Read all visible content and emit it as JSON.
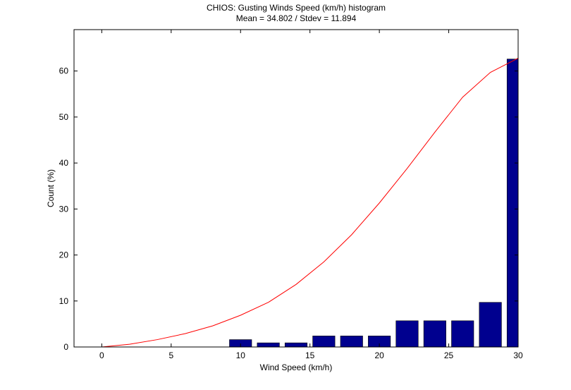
{
  "chart_data": {
    "type": "bar",
    "title": "CHIOS: Gusting Winds Speed (km/h) histogram",
    "subtitle": "Mean = 34.802 / Stdev = 11.894",
    "xlabel": "Wind Speed (km/h)",
    "ylabel": "Count (%)",
    "xlim": [
      -2,
      30
    ],
    "ylim": [
      0,
      69
    ],
    "xticks": [
      0,
      5,
      10,
      15,
      20,
      25,
      30
    ],
    "yticks": [
      0,
      10,
      20,
      30,
      40,
      50,
      60
    ],
    "bar_width": 1.6,
    "bar_color": "#00008f",
    "curve_color": "#ff0000",
    "grid": false,
    "bars": [
      {
        "x": 10,
        "value": 1.6
      },
      {
        "x": 12,
        "value": 0.9
      },
      {
        "x": 14,
        "value": 0.9
      },
      {
        "x": 16,
        "value": 2.4
      },
      {
        "x": 18,
        "value": 2.4
      },
      {
        "x": 20,
        "value": 2.4
      },
      {
        "x": 22,
        "value": 5.7
      },
      {
        "x": 24,
        "value": 5.7
      },
      {
        "x": 26,
        "value": 5.7
      },
      {
        "x": 28,
        "value": 9.7
      },
      {
        "x": 30,
        "value": 62.6
      }
    ],
    "curve": {
      "x": [
        0,
        2,
        4,
        6,
        8,
        10,
        12,
        14,
        16,
        18,
        20,
        22,
        24,
        26,
        28,
        30
      ],
      "y": [
        0,
        0.6,
        1.6,
        2.9,
        4.6,
        6.9,
        9.7,
        13.6,
        18.5,
        24.4,
        31.3,
        38.8,
        46.7,
        54.3,
        59.7,
        62.8
      ]
    }
  }
}
